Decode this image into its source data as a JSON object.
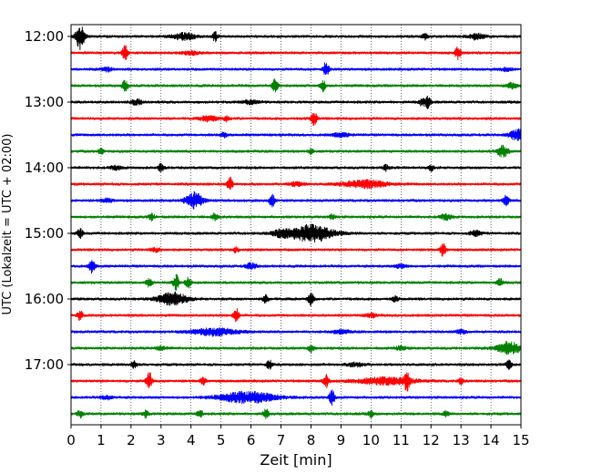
{
  "chart_data": {
    "type": "line",
    "title": "",
    "xlabel": "Zeit  [min]",
    "ylabel": "UTC (Lokalzeit = UTC + 02:00)",
    "xlim": [
      0,
      15
    ],
    "x_ticks": [
      "0",
      "1",
      "2",
      "3",
      "4",
      "5",
      "6",
      "7",
      "8",
      "9",
      "10",
      "11",
      "12",
      "13",
      "14",
      "15"
    ],
    "y_tick_labels": [
      "12:00",
      "13:00",
      "14:00",
      "15:00",
      "16:00",
      "17:00"
    ],
    "grid": "vertical dotted at each minute",
    "trace_colors": [
      "#000000",
      "#ff0000",
      "#0000ff",
      "#008000"
    ],
    "trace_interval_minutes": 15,
    "start_time": "12:00",
    "rows": [
      {
        "start": "12:00",
        "color": "#000000",
        "events": [
          [
            0.3,
            14,
            0.15
          ],
          [
            3.8,
            4,
            0.4
          ],
          [
            4.8,
            5,
            0.1
          ],
          [
            11.8,
            3,
            0.1
          ],
          [
            13.5,
            3,
            0.3
          ]
        ]
      },
      {
        "start": "12:15",
        "color": "#ff0000",
        "events": [
          [
            1.8,
            8,
            0.1
          ],
          [
            12.9,
            7,
            0.1
          ],
          [
            4.0,
            2,
            0.3
          ]
        ]
      },
      {
        "start": "12:30",
        "color": "#0000ff",
        "events": [
          [
            8.5,
            8,
            0.1
          ],
          [
            1.2,
            2,
            0.2
          ],
          [
            14.5,
            2,
            0.2
          ]
        ]
      },
      {
        "start": "12:45",
        "color": "#008000",
        "events": [
          [
            1.8,
            6,
            0.1
          ],
          [
            6.8,
            7,
            0.1
          ],
          [
            8.4,
            6,
            0.1
          ],
          [
            14.7,
            3,
            0.2
          ]
        ]
      },
      {
        "start": "13:00",
        "color": "#000000",
        "events": [
          [
            11.9,
            7,
            0.1
          ],
          [
            11.7,
            4,
            0.1
          ],
          [
            2.2,
            3,
            0.2
          ],
          [
            6.0,
            2,
            0.3
          ]
        ]
      },
      {
        "start": "13:15",
        "color": "#ff0000",
        "events": [
          [
            8.1,
            8,
            0.1
          ],
          [
            4.6,
            3,
            0.3
          ],
          [
            5.2,
            3,
            0.1
          ]
        ]
      },
      {
        "start": "13:30",
        "color": "#0000ff",
        "events": [
          [
            14.9,
            6,
            0.3
          ],
          [
            5.1,
            3,
            0.1
          ],
          [
            9.0,
            2,
            0.3
          ]
        ]
      },
      {
        "start": "13:45",
        "color": "#008000",
        "events": [
          [
            14.4,
            6,
            0.2
          ],
          [
            1.0,
            3,
            0.1
          ],
          [
            8.0,
            3,
            0.1
          ]
        ]
      },
      {
        "start": "14:00",
        "color": "#000000",
        "events": [
          [
            3.0,
            4,
            0.1
          ],
          [
            10.5,
            3,
            0.1
          ],
          [
            12.0,
            3,
            0.1
          ],
          [
            1.5,
            2,
            0.2
          ]
        ]
      },
      {
        "start": "14:15",
        "color": "#ff0000",
        "events": [
          [
            5.3,
            8,
            0.1
          ],
          [
            9.8,
            4,
            0.8
          ],
          [
            7.5,
            2,
            0.3
          ]
        ]
      },
      {
        "start": "14:30",
        "color": "#0000ff",
        "events": [
          [
            4.1,
            9,
            0.3
          ],
          [
            6.7,
            7,
            0.1
          ],
          [
            14.5,
            6,
            0.1
          ],
          [
            1.2,
            2,
            0.2
          ]
        ]
      },
      {
        "start": "14:45",
        "color": "#008000",
        "events": [
          [
            2.7,
            4,
            0.1
          ],
          [
            4.8,
            4,
            0.1
          ],
          [
            8.7,
            3,
            0.1
          ],
          [
            12.5,
            3,
            0.2
          ]
        ]
      },
      {
        "start": "15:00",
        "color": "#000000",
        "events": [
          [
            0.3,
            5,
            0.1
          ],
          [
            8.0,
            9,
            0.8
          ],
          [
            7.0,
            3,
            0.3
          ],
          [
            13.5,
            3,
            0.2
          ]
        ]
      },
      {
        "start": "15:15",
        "color": "#ff0000",
        "events": [
          [
            12.4,
            7,
            0.1
          ],
          [
            5.5,
            3,
            0.1
          ],
          [
            2.8,
            2,
            0.2
          ]
        ]
      },
      {
        "start": "15:30",
        "color": "#0000ff",
        "events": [
          [
            0.7,
            7,
            0.1
          ],
          [
            6.0,
            3,
            0.2
          ],
          [
            11.0,
            2,
            0.2
          ]
        ]
      },
      {
        "start": "15:45",
        "color": "#008000",
        "events": [
          [
            3.5,
            9,
            0.1
          ],
          [
            3.9,
            6,
            0.1
          ],
          [
            2.6,
            5,
            0.1
          ],
          [
            14.3,
            4,
            0.1
          ]
        ]
      },
      {
        "start": "16:00",
        "color": "#000000",
        "events": [
          [
            3.4,
            7,
            0.5
          ],
          [
            6.5,
            5,
            0.1
          ],
          [
            8.0,
            7,
            0.1
          ],
          [
            10.8,
            3,
            0.1
          ]
        ]
      },
      {
        "start": "16:15",
        "color": "#ff0000",
        "events": [
          [
            5.5,
            8,
            0.1
          ],
          [
            0.3,
            5,
            0.1
          ],
          [
            10.0,
            2,
            0.2
          ]
        ]
      },
      {
        "start": "16:30",
        "color": "#0000ff",
        "events": [
          [
            4.8,
            4,
            0.8
          ],
          [
            9.0,
            2,
            0.3
          ],
          [
            13.0,
            2,
            0.2
          ]
        ]
      },
      {
        "start": "16:45",
        "color": "#008000",
        "events": [
          [
            14.6,
            7,
            0.4
          ],
          [
            8.0,
            4,
            0.1
          ],
          [
            3.0,
            2,
            0.2
          ],
          [
            11.0,
            2,
            0.2
          ]
        ]
      },
      {
        "start": "17:00",
        "color": "#000000",
        "events": [
          [
            6.6,
            5,
            0.1
          ],
          [
            14.6,
            5,
            0.1
          ],
          [
            2.1,
            4,
            0.1
          ],
          [
            9.5,
            2,
            0.3
          ]
        ]
      },
      {
        "start": "17:15",
        "color": "#ff0000",
        "events": [
          [
            2.6,
            10,
            0.1
          ],
          [
            8.5,
            7,
            0.1
          ],
          [
            11.2,
            9,
            0.1
          ],
          [
            10.5,
            4,
            1.0
          ],
          [
            4.4,
            4,
            0.1
          ],
          [
            13.0,
            3,
            0.1
          ]
        ]
      },
      {
        "start": "17:30",
        "color": "#0000ff",
        "events": [
          [
            5.9,
            6,
            1.0
          ],
          [
            8.7,
            8,
            0.1
          ],
          [
            1.2,
            2,
            0.2
          ]
        ]
      },
      {
        "start": "17:45",
        "color": "#008000",
        "events": [
          [
            0.3,
            4,
            0.1
          ],
          [
            2.5,
            4,
            0.1
          ],
          [
            4.3,
            4,
            0.1
          ],
          [
            6.5,
            5,
            0.1
          ],
          [
            10.0,
            3,
            0.1
          ],
          [
            12.5,
            3,
            0.1
          ]
        ]
      }
    ]
  }
}
